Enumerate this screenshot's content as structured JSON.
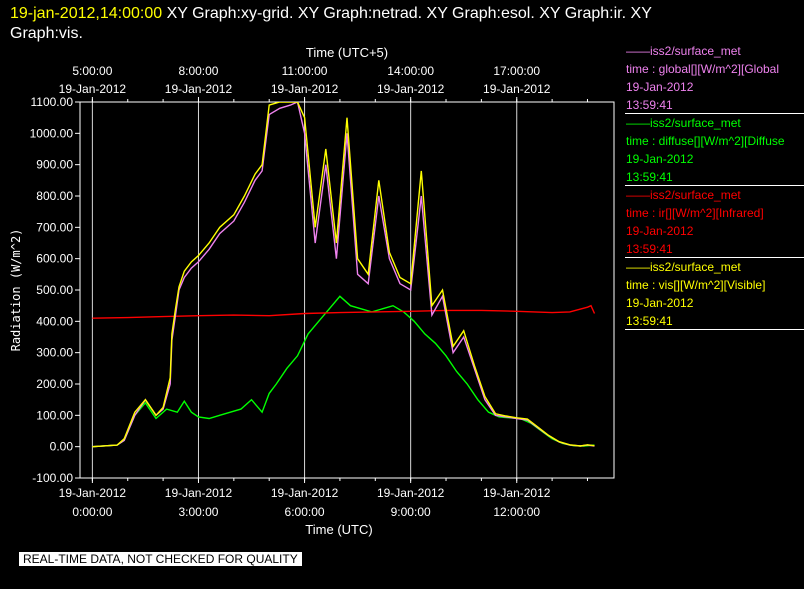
{
  "header": {
    "timestamp": "19-jan-2012,14:00:00",
    "graphs_line1": "  XY Graph:xy-grid.  XY Graph:netrad.  XY Graph:esol.  XY Graph:ir.  XY",
    "graphs_line2": "Graph:vis."
  },
  "legend": [
    {
      "source": "——iss2/surface_met",
      "variable": "time : global[][W/m^2][Global",
      "date": "19-Jan-2012",
      "time": "13:59:41",
      "color": "#ee82ee"
    },
    {
      "source": "——iss2/surface_met",
      "variable": "time : diffuse[][W/m^2][Diffuse",
      "date": "19-Jan-2012",
      "time": "13:59:41",
      "color": "#00ff00"
    },
    {
      "source": "——iss2/surface_met",
      "variable": "time : ir[][W/m^2][Infrared]",
      "date": "19-Jan-2012",
      "time": "13:59:41",
      "color": "#ff0000"
    },
    {
      "source": "——iss2/surface_met",
      "variable": "time : vis[][W/m^2][Visible]",
      "date": "19-Jan-2012",
      "time": "13:59:41",
      "color": "#ffff00"
    }
  ],
  "quality_note": "REAL-TIME DATA, NOT CHECKED FOR QUALITY",
  "chart_data": {
    "type": "line",
    "xlabel": "Time (UTC)",
    "x2label": "Time (UTC+5)",
    "ylabel": "Radiation (W/m^2)",
    "xlim": [
      -0.35,
      14.75
    ],
    "ylim": [
      -100,
      1100
    ],
    "grid": true,
    "yticks": [
      -100,
      0,
      100,
      200,
      300,
      400,
      500,
      600,
      700,
      800,
      900,
      1000,
      1100
    ],
    "ytick_labels": [
      "-100.00",
      "0.00",
      "100.00",
      "200.00",
      "300.00",
      "400.00",
      "500.00",
      "600.00",
      "700.00",
      "800.00",
      "900.00",
      "1000.00",
      "1100.00"
    ],
    "xticks": [
      {
        "x": 0,
        "date": "19-Jan-2012",
        "time": "0:00:00"
      },
      {
        "x": 3,
        "date": "19-Jan-2012",
        "time": "3:00:00"
      },
      {
        "x": 6,
        "date": "19-Jan-2012",
        "time": "6:00:00"
      },
      {
        "x": 9,
        "date": "19-Jan-2012",
        "time": "9:00:00"
      },
      {
        "x": 12,
        "date": "19-Jan-2012",
        "time": "12:00:00"
      }
    ],
    "x2ticks": [
      {
        "x": 0,
        "time": "5:00:00",
        "date": "19-Jan-2012"
      },
      {
        "x": 3,
        "time": "8:00:00",
        "date": "19-Jan-2012"
      },
      {
        "x": 6,
        "time": "11:00:00",
        "date": "19-Jan-2012"
      },
      {
        "x": 9,
        "time": "14:00:00",
        "date": "19-Jan-2012"
      },
      {
        "x": 12,
        "time": "17:00:00",
        "date": "19-Jan-2012"
      }
    ],
    "series": [
      {
        "name": "time : global[][W/m^2][Global",
        "color": "#ee82ee",
        "x": [
          0,
          0.7,
          0.9,
          1.2,
          1.5,
          1.8,
          2.0,
          2.2,
          2.25,
          2.35,
          2.45,
          2.6,
          2.8,
          3.0,
          3.3,
          3.6,
          4.0,
          4.3,
          4.6,
          4.8,
          5.0,
          5.3,
          5.6,
          5.8,
          6.0,
          6.3,
          6.6,
          6.9,
          7.2,
          7.5,
          7.8,
          8.1,
          8.4,
          8.7,
          9.0,
          9.3,
          9.6,
          9.9,
          10.2,
          10.5,
          10.8,
          11.1,
          11.4,
          11.7,
          12.0,
          12.3,
          12.6,
          12.9,
          13.2,
          13.5,
          13.8,
          14.0,
          14.2
        ],
        "y": [
          0,
          5,
          20,
          100,
          150,
          100,
          120,
          200,
          340,
          420,
          500,
          540,
          570,
          590,
          630,
          680,
          720,
          780,
          850,
          880,
          1060,
          1080,
          1090,
          1100,
          1000,
          650,
          900,
          600,
          1000,
          550,
          520,
          800,
          600,
          520,
          500,
          800,
          420,
          480,
          300,
          350,
          250,
          150,
          100,
          95,
          90,
          85,
          60,
          35,
          15,
          5,
          2,
          5,
          2
        ]
      },
      {
        "name": "time : diffuse[][W/m^2][Diffuse",
        "color": "#00ff00",
        "x": [
          0,
          0.7,
          0.9,
          1.2,
          1.5,
          1.8,
          2.1,
          2.4,
          2.6,
          2.8,
          3.0,
          3.3,
          3.6,
          3.9,
          4.2,
          4.5,
          4.8,
          5.0,
          5.2,
          5.5,
          5.8,
          6.1,
          6.4,
          6.7,
          7.0,
          7.3,
          7.6,
          7.9,
          8.2,
          8.5,
          8.8,
          9.1,
          9.4,
          9.7,
          10.0,
          10.3,
          10.6,
          10.9,
          11.2,
          11.5,
          11.8,
          12.1,
          12.4,
          12.7,
          13.0,
          13.3,
          13.6,
          13.9,
          14.2
        ],
        "y": [
          0,
          5,
          20,
          100,
          140,
          90,
          120,
          110,
          145,
          110,
          95,
          90,
          100,
          110,
          120,
          150,
          110,
          170,
          200,
          250,
          290,
          360,
          400,
          440,
          480,
          450,
          440,
          430,
          440,
          450,
          430,
          400,
          360,
          330,
          290,
          240,
          200,
          150,
          110,
          95,
          92,
          90,
          75,
          50,
          25,
          10,
          3,
          2,
          5
        ]
      },
      {
        "name": "time : ir[][W/m^2][Infrared]",
        "color": "#ff0000",
        "x": [
          0,
          1.0,
          2.0,
          3.0,
          4.0,
          5.0,
          6.0,
          7.0,
          8.0,
          9.0,
          10.0,
          11.0,
          12.0,
          13.0,
          13.5,
          14.0,
          14.1,
          14.2
        ],
        "y": [
          410,
          412,
          415,
          418,
          420,
          418,
          425,
          428,
          430,
          432,
          435,
          435,
          432,
          428,
          430,
          445,
          450,
          425
        ]
      },
      {
        "name": "time : vis[][W/m^2][Visible]",
        "color": "#ffff00",
        "x": [
          0,
          0.7,
          0.9,
          1.2,
          1.5,
          1.8,
          2.0,
          2.2,
          2.25,
          2.35,
          2.45,
          2.6,
          2.8,
          3.0,
          3.3,
          3.6,
          4.0,
          4.3,
          4.6,
          4.8,
          5.0,
          5.3,
          5.6,
          5.8,
          6.0,
          6.3,
          6.6,
          6.9,
          7.2,
          7.5,
          7.8,
          8.1,
          8.4,
          8.7,
          9.0,
          9.3,
          9.6,
          9.9,
          10.2,
          10.5,
          10.8,
          11.1,
          11.4,
          11.7,
          12.0,
          12.3,
          12.6,
          12.9,
          13.2,
          13.5,
          13.8,
          14.0,
          14.2
        ],
        "y": [
          0,
          5,
          25,
          110,
          150,
          100,
          125,
          220,
          360,
          440,
          510,
          560,
          590,
          610,
          650,
          700,
          740,
          800,
          870,
          900,
          1090,
          1100,
          1100,
          1100,
          1050,
          700,
          950,
          650,
          1050,
          600,
          550,
          850,
          620,
          540,
          520,
          880,
          450,
          500,
          320,
          370,
          260,
          160,
          105,
          98,
          92,
          88,
          62,
          36,
          16,
          6,
          2,
          6,
          3
        ]
      }
    ]
  }
}
